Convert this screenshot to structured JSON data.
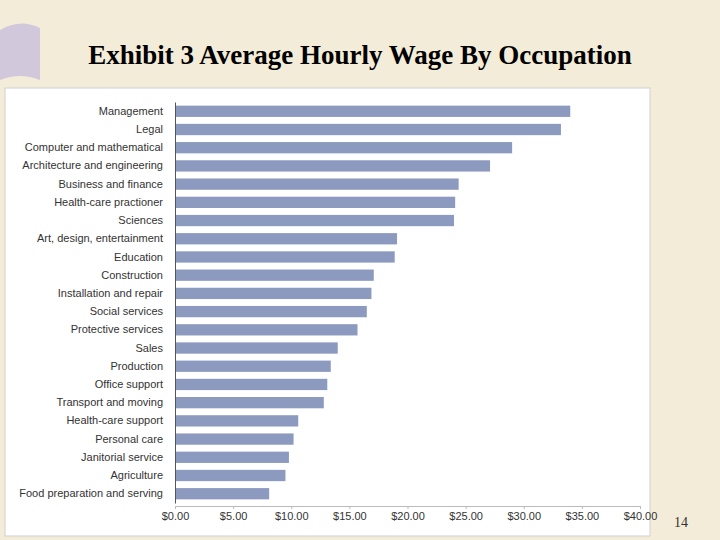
{
  "chart_data": {
    "type": "bar",
    "orientation": "horizontal",
    "title": "Exhibit 3 Average Hourly Wage By Occupation",
    "categories": [
      "Management",
      "Legal",
      "Computer and mathematical",
      "Architecture and engineering",
      "Business and finance",
      "Health-care practioner",
      "Sciences",
      "Art, design, entertainment",
      "Education",
      "Construction",
      "Installation and repair",
      "Social services",
      "Protective services",
      "Sales",
      "Production",
      "Office support",
      "Transport and moving",
      "Health-care support",
      "Personal care",
      "Janitorial service",
      "Agriculture",
      "Food preparation and serving"
    ],
    "values": [
      34.0,
      33.2,
      29.0,
      27.1,
      24.4,
      24.1,
      24.0,
      19.1,
      18.9,
      17.1,
      16.9,
      16.5,
      15.7,
      14.0,
      13.4,
      13.1,
      12.8,
      10.6,
      10.2,
      9.8,
      9.5,
      8.1
    ],
    "color": "#8d9ac0",
    "xlim": [
      0,
      40
    ],
    "xticks": [
      {
        "value": 0,
        "label": "$0.00"
      },
      {
        "value": 5,
        "label": "$5.00"
      },
      {
        "value": 10,
        "label": "$10.00"
      },
      {
        "value": 15,
        "label": "$15.00"
      },
      {
        "value": 20,
        "label": "$20.00"
      },
      {
        "value": 25,
        "label": "$25.00"
      },
      {
        "value": 30,
        "label": "$30.00"
      },
      {
        "value": 35,
        "label": "$35.00"
      },
      {
        "value": 40,
        "label": "$40.00"
      }
    ],
    "grid": false
  },
  "page_number": 14
}
